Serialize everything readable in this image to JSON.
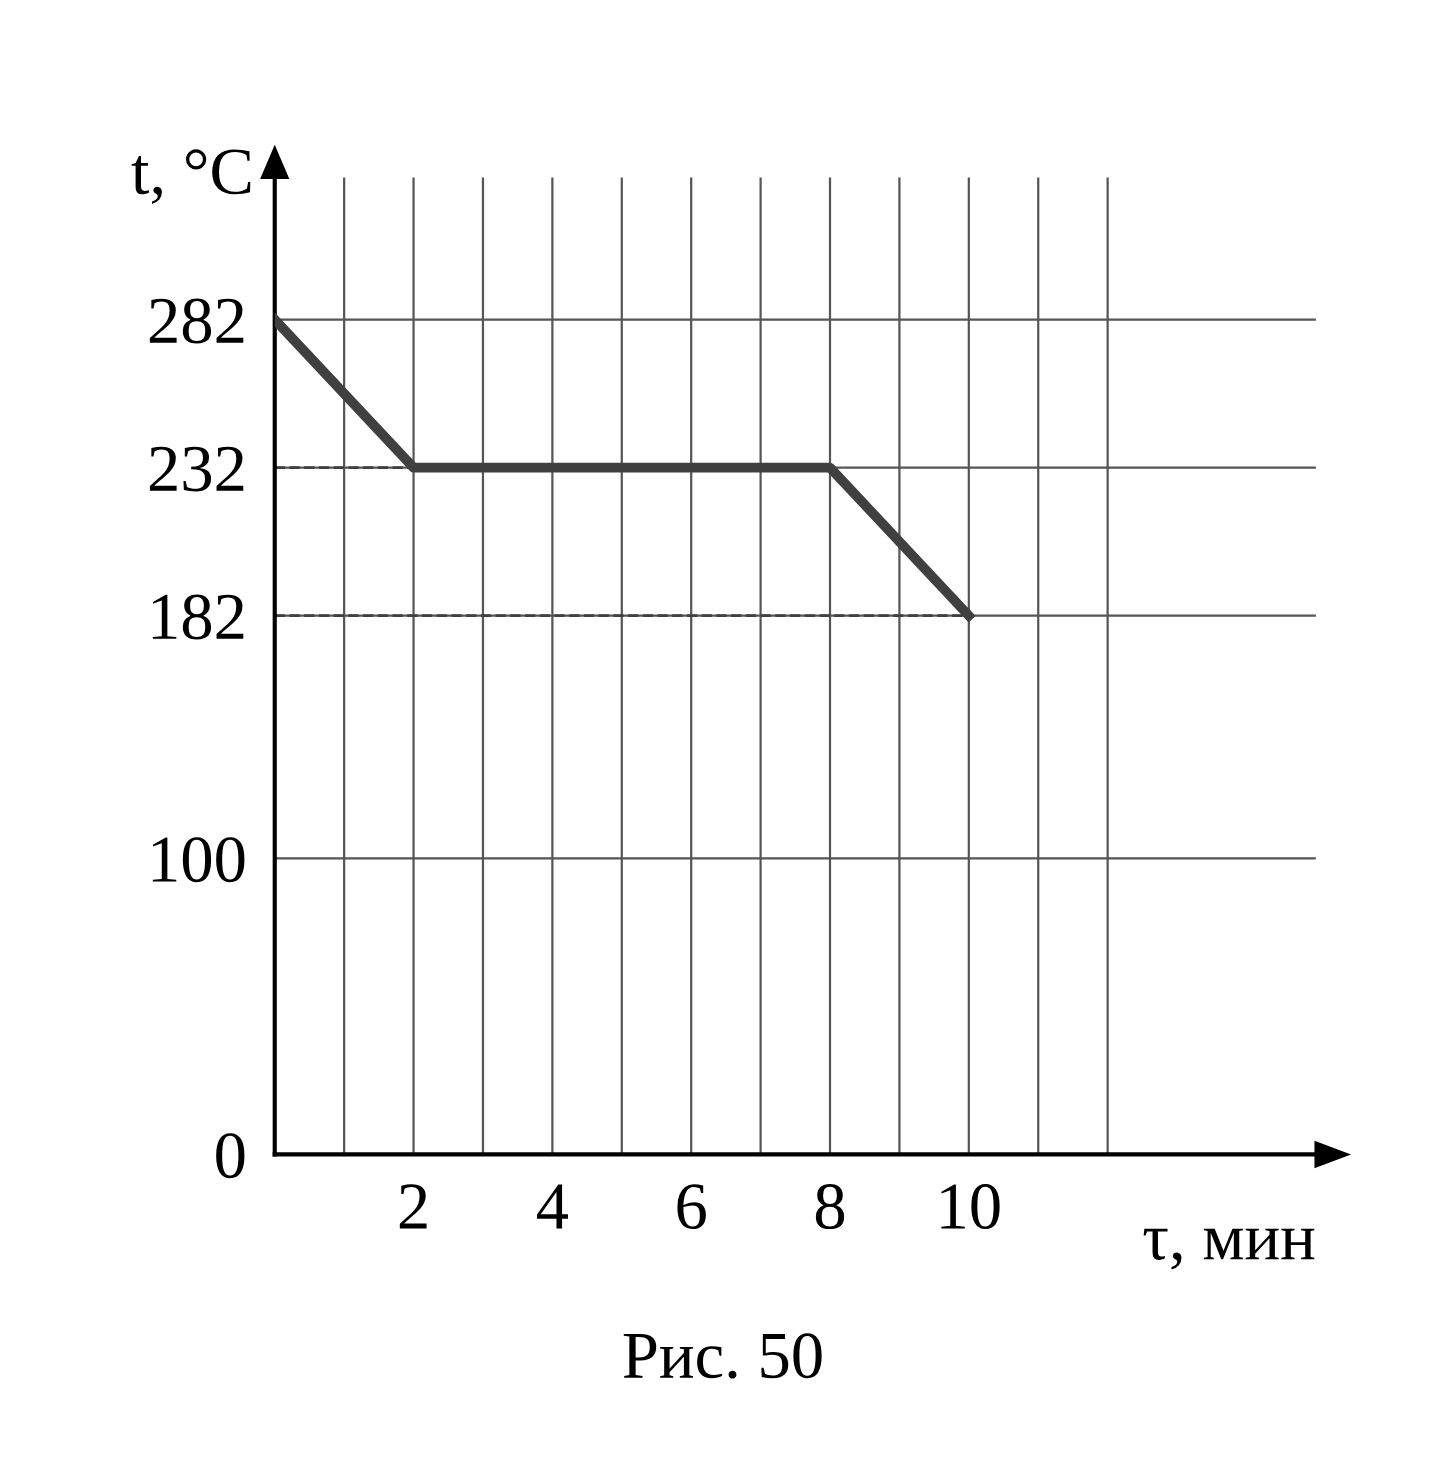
{
  "chart_data": {
    "type": "line",
    "xlabel": "τ, мин",
    "ylabel": "t, °C",
    "annotations": [
      "Рис. 50"
    ],
    "x": [
      0,
      2,
      8,
      10
    ],
    "series": [
      {
        "color": "#404040",
        "values": [
          282,
          232,
          232,
          182
        ]
      }
    ],
    "xlim": [
      0,
      15
    ],
    "ylim": [
      0,
      330
    ],
    "xticks": [
      2,
      4,
      6,
      8,
      10
    ],
    "yticks": [
      0,
      100,
      182,
      232,
      282
    ],
    "ref_lines": [
      {
        "axis": "y",
        "value": 232,
        "color": "#404040",
        "line_style": "dashed"
      },
      {
        "axis": "y",
        "value": 182,
        "color": "#404040",
        "line_style": "dashed"
      }
    ],
    "grid": true,
    "marker": "none",
    "line_style": "solid"
  }
}
